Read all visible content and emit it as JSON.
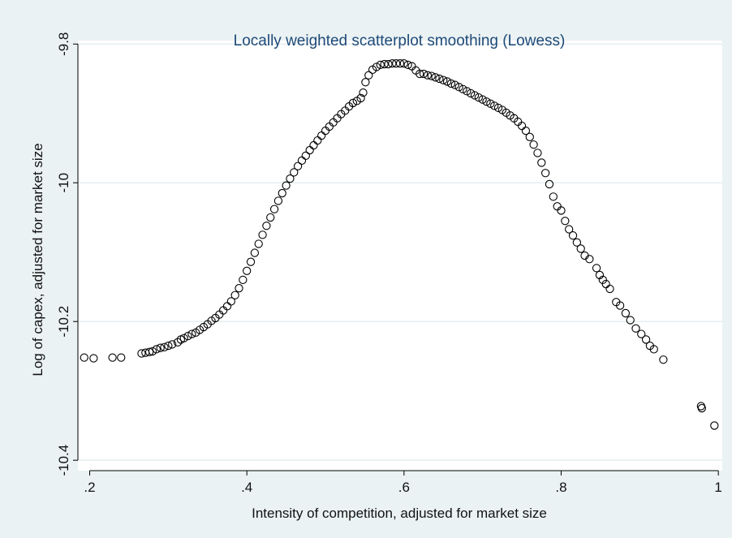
{
  "chart_data": {
    "type": "scatter",
    "title": "Locally weighted scatterplot smoothing (Lowess)",
    "xlabel": "Intensity of competition, adjusted for market size",
    "ylabel": "Log of capex, adjusted for market size",
    "xlim": [
      0.185,
      1.005
    ],
    "ylim": [
      -10.415,
      -9.795
    ],
    "x_ticks": [
      {
        "value": 0.2,
        "label": ".2"
      },
      {
        "value": 0.4,
        "label": ".4"
      },
      {
        "value": 0.6,
        "label": ".6"
      },
      {
        "value": 0.8,
        "label": ".8"
      },
      {
        "value": 1.0,
        "label": "1"
      }
    ],
    "y_ticks": [
      {
        "value": -9.8,
        "label": "-9.8"
      },
      {
        "value": -10.0,
        "label": "-10"
      },
      {
        "value": -10.2,
        "label": "-10.2"
      },
      {
        "value": -10.4,
        "label": "-10.4"
      }
    ],
    "grid": true,
    "marker": "hollow-circle",
    "colors": {
      "background": "#eaf2f3",
      "plot_area": "#ffffff",
      "title": "#1e4a78",
      "marker": "#000000",
      "grid": "#e6eef0"
    },
    "points": [
      [
        0.193,
        -10.252
      ],
      [
        0.205,
        -10.253
      ],
      [
        0.229,
        -10.252
      ],
      [
        0.24,
        -10.252
      ],
      [
        0.266,
        -10.246
      ],
      [
        0.271,
        -10.245
      ],
      [
        0.276,
        -10.244
      ],
      [
        0.28,
        -10.243
      ],
      [
        0.285,
        -10.24
      ],
      [
        0.29,
        -10.238
      ],
      [
        0.295,
        -10.237
      ],
      [
        0.3,
        -10.235
      ],
      [
        0.305,
        -10.233
      ],
      [
        0.312,
        -10.23
      ],
      [
        0.316,
        -10.226
      ],
      [
        0.32,
        -10.224
      ],
      [
        0.325,
        -10.221
      ],
      [
        0.33,
        -10.218
      ],
      [
        0.335,
        -10.216
      ],
      [
        0.34,
        -10.212
      ],
      [
        0.345,
        -10.208
      ],
      [
        0.35,
        -10.204
      ],
      [
        0.355,
        -10.199
      ],
      [
        0.36,
        -10.195
      ],
      [
        0.365,
        -10.19
      ],
      [
        0.37,
        -10.184
      ],
      [
        0.375,
        -10.178
      ],
      [
        0.38,
        -10.171
      ],
      [
        0.385,
        -10.162
      ],
      [
        0.39,
        -10.152
      ],
      [
        0.395,
        -10.14
      ],
      [
        0.4,
        -10.127
      ],
      [
        0.405,
        -10.114
      ],
      [
        0.41,
        -10.101
      ],
      [
        0.415,
        -10.088
      ],
      [
        0.42,
        -10.075
      ],
      [
        0.425,
        -10.062
      ],
      [
        0.43,
        -10.05
      ],
      [
        0.435,
        -10.038
      ],
      [
        0.44,
        -10.026
      ],
      [
        0.445,
        -10.015
      ],
      [
        0.45,
        -10.004
      ],
      [
        0.455,
        -9.994
      ],
      [
        0.46,
        -9.985
      ],
      [
        0.465,
        -9.976
      ],
      [
        0.47,
        -9.968
      ],
      [
        0.475,
        -9.961
      ],
      [
        0.48,
        -9.953
      ],
      [
        0.485,
        -9.946
      ],
      [
        0.49,
        -9.939
      ],
      [
        0.495,
        -9.932
      ],
      [
        0.5,
        -9.925
      ],
      [
        0.505,
        -9.919
      ],
      [
        0.51,
        -9.913
      ],
      [
        0.515,
        -9.907
      ],
      [
        0.52,
        -9.901
      ],
      [
        0.525,
        -9.896
      ],
      [
        0.53,
        -9.89
      ],
      [
        0.535,
        -9.885
      ],
      [
        0.54,
        -9.882
      ],
      [
        0.545,
        -9.878
      ],
      [
        0.548,
        -9.87
      ],
      [
        0.551,
        -9.855
      ],
      [
        0.555,
        -9.845
      ],
      [
        0.56,
        -9.837
      ],
      [
        0.565,
        -9.833
      ],
      [
        0.57,
        -9.83
      ],
      [
        0.575,
        -9.829
      ],
      [
        0.58,
        -9.829
      ],
      [
        0.585,
        -9.828
      ],
      [
        0.59,
        -9.828
      ],
      [
        0.595,
        -9.828
      ],
      [
        0.6,
        -9.828
      ],
      [
        0.605,
        -9.83
      ],
      [
        0.61,
        -9.832
      ],
      [
        0.615,
        -9.838
      ],
      [
        0.62,
        -9.843
      ],
      [
        0.625,
        -9.843
      ],
      [
        0.63,
        -9.845
      ],
      [
        0.635,
        -9.846
      ],
      [
        0.64,
        -9.848
      ],
      [
        0.645,
        -9.85
      ],
      [
        0.65,
        -9.852
      ],
      [
        0.655,
        -9.854
      ],
      [
        0.66,
        -9.857
      ],
      [
        0.665,
        -9.859
      ],
      [
        0.67,
        -9.862
      ],
      [
        0.675,
        -9.865
      ],
      [
        0.68,
        -9.868
      ],
      [
        0.685,
        -9.871
      ],
      [
        0.69,
        -9.874
      ],
      [
        0.695,
        -9.877
      ],
      [
        0.7,
        -9.88
      ],
      [
        0.705,
        -9.883
      ],
      [
        0.71,
        -9.886
      ],
      [
        0.715,
        -9.889
      ],
      [
        0.72,
        -9.892
      ],
      [
        0.725,
        -9.895
      ],
      [
        0.73,
        -9.899
      ],
      [
        0.735,
        -9.903
      ],
      [
        0.74,
        -9.907
      ],
      [
        0.745,
        -9.912
      ],
      [
        0.75,
        -9.918
      ],
      [
        0.755,
        -9.925
      ],
      [
        0.76,
        -9.934
      ],
      [
        0.765,
        -9.945
      ],
      [
        0.77,
        -9.957
      ],
      [
        0.775,
        -9.971
      ],
      [
        0.78,
        -9.986
      ],
      [
        0.785,
        -10.002
      ],
      [
        0.79,
        -10.02
      ],
      [
        0.795,
        -10.034
      ],
      [
        0.8,
        -10.04
      ],
      [
        0.805,
        -10.055
      ],
      [
        0.81,
        -10.067
      ],
      [
        0.815,
        -10.076
      ],
      [
        0.82,
        -10.086
      ],
      [
        0.825,
        -10.095
      ],
      [
        0.83,
        -10.105
      ],
      [
        0.836,
        -10.11
      ],
      [
        0.845,
        -10.123
      ],
      [
        0.849,
        -10.133
      ],
      [
        0.853,
        -10.14
      ],
      [
        0.857,
        -10.146
      ],
      [
        0.862,
        -10.153
      ],
      [
        0.87,
        -10.172
      ],
      [
        0.875,
        -10.177
      ],
      [
        0.882,
        -10.188
      ],
      [
        0.888,
        -10.198
      ],
      [
        0.895,
        -10.21
      ],
      [
        0.902,
        -10.218
      ],
      [
        0.908,
        -10.226
      ],
      [
        0.913,
        -10.235
      ],
      [
        0.918,
        -10.24
      ],
      [
        0.93,
        -10.255
      ],
      [
        0.978,
        -10.322
      ],
      [
        0.979,
        -10.325
      ],
      [
        0.995,
        -10.35
      ]
    ]
  }
}
